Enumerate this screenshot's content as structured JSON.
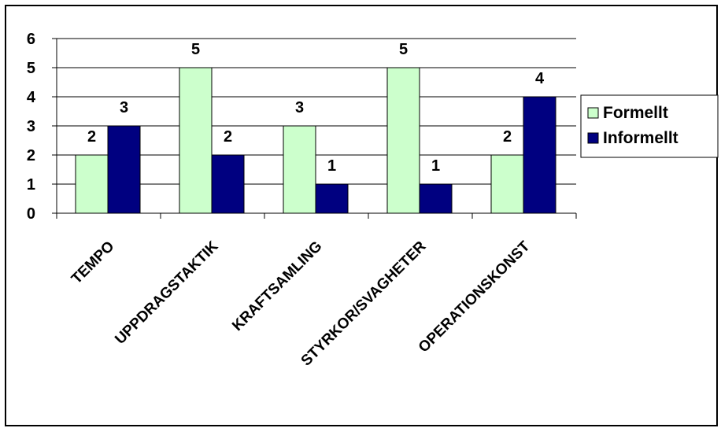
{
  "chart_data": {
    "type": "bar",
    "categories": [
      "TEMPO",
      "UPPDRAGSTAKTIK",
      "KRAFTSAMLING",
      "STYRKOR/SVAGHETER",
      "OPERATIONSKONST"
    ],
    "series": [
      {
        "name": "Formellt",
        "values": [
          2,
          5,
          3,
          5,
          2
        ],
        "color": "#ccffcc"
      },
      {
        "name": "Informellt",
        "values": [
          3,
          2,
          1,
          1,
          4
        ],
        "color": "#000080"
      }
    ],
    "ylim": [
      0,
      6
    ],
    "yticks": [
      "0",
      "1",
      "2",
      "3",
      "4",
      "5",
      "6"
    ],
    "grid": true,
    "legend": "right"
  }
}
